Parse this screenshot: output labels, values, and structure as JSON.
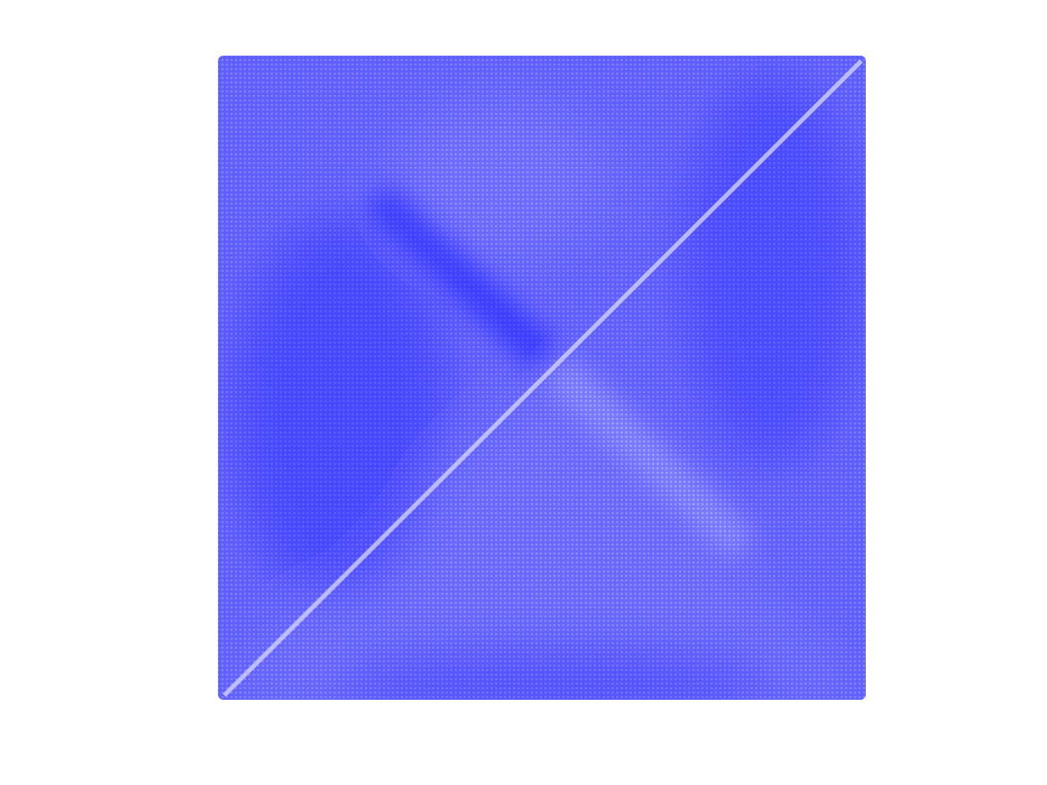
{
  "pattern": {
    "color": "#0000ff"
  }
}
